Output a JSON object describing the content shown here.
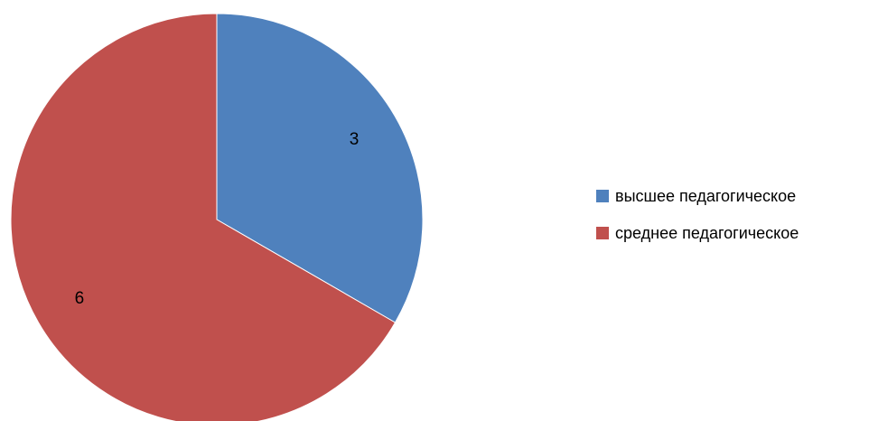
{
  "chart_data": {
    "type": "pie",
    "title": "",
    "categories": [
      "высшее педагогическое",
      "среднее педагогическое"
    ],
    "values": [
      3,
      6
    ],
    "colors": [
      "#4F81BD",
      "#C0504D"
    ],
    "show_data_labels": true,
    "legend_position": "right",
    "start_angle": "top, clockwise"
  },
  "legend": {
    "items": [
      {
        "label": "высшее педагогическое",
        "color": "#4F81BD"
      },
      {
        "label": "среднее педагогическое",
        "color": "#C0504D"
      }
    ]
  }
}
